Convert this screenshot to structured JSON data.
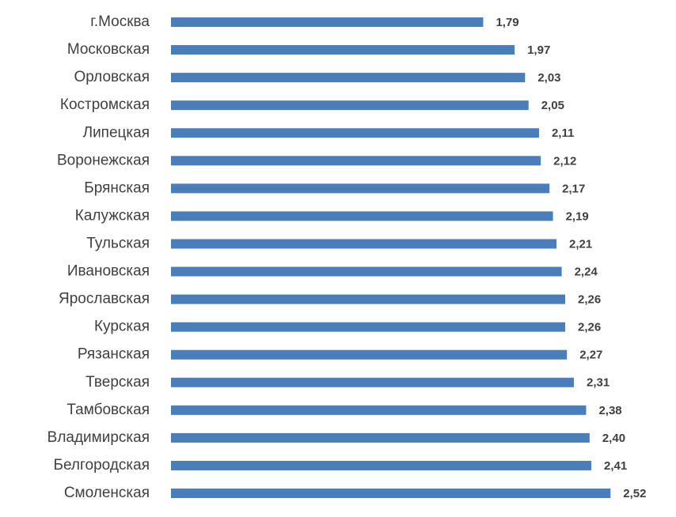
{
  "chart_data": {
    "type": "barh",
    "color": "#4a7ebb",
    "categories": [
      "г.Москва",
      "Московская",
      "Орловская",
      "Костромская",
      "Липецкая",
      "Воронежская",
      "Брянская",
      "Калужская",
      "Тульская",
      "Ивановская",
      "Ярославская",
      "Курская",
      "Рязанская",
      "Тверская",
      "Тамбовская",
      "Владимирская",
      "Белгородская",
      "Смоленская"
    ],
    "values": [
      1.79,
      1.97,
      2.03,
      2.05,
      2.11,
      2.12,
      2.17,
      2.19,
      2.21,
      2.24,
      2.26,
      2.26,
      2.27,
      2.31,
      2.38,
      2.4,
      2.41,
      2.52
    ],
    "value_labels": [
      "1,79",
      "1,97",
      "2,03",
      "2,05",
      "2,11",
      "2,12",
      "2,17",
      "2,19",
      "2,21",
      "2,24",
      "2,26",
      "2,26",
      "2,27",
      "2,31",
      "2,38",
      "2,40",
      "2,41",
      "2,52"
    ],
    "xlim": [
      0,
      2.8
    ]
  }
}
